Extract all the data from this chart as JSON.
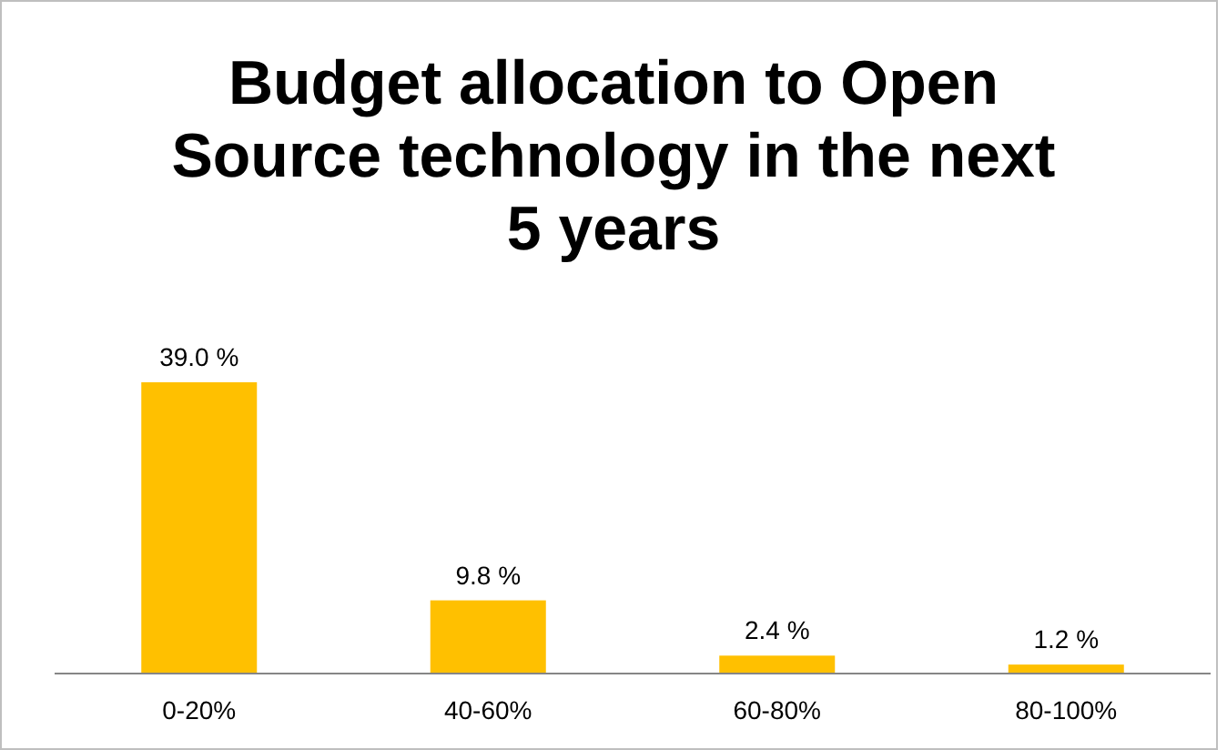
{
  "chart_data": {
    "type": "bar",
    "title": "Budget allocation to Open Source technology in the next 5 years",
    "categories": [
      "0-20%",
      "40-60%",
      "60-80%",
      "80-100%"
    ],
    "values": [
      39.0,
      9.8,
      2.4,
      1.2
    ],
    "value_labels": [
      "39.0 %",
      "9.8 %",
      "2.4 %",
      "1.2 %"
    ],
    "color": "#ffc000"
  }
}
